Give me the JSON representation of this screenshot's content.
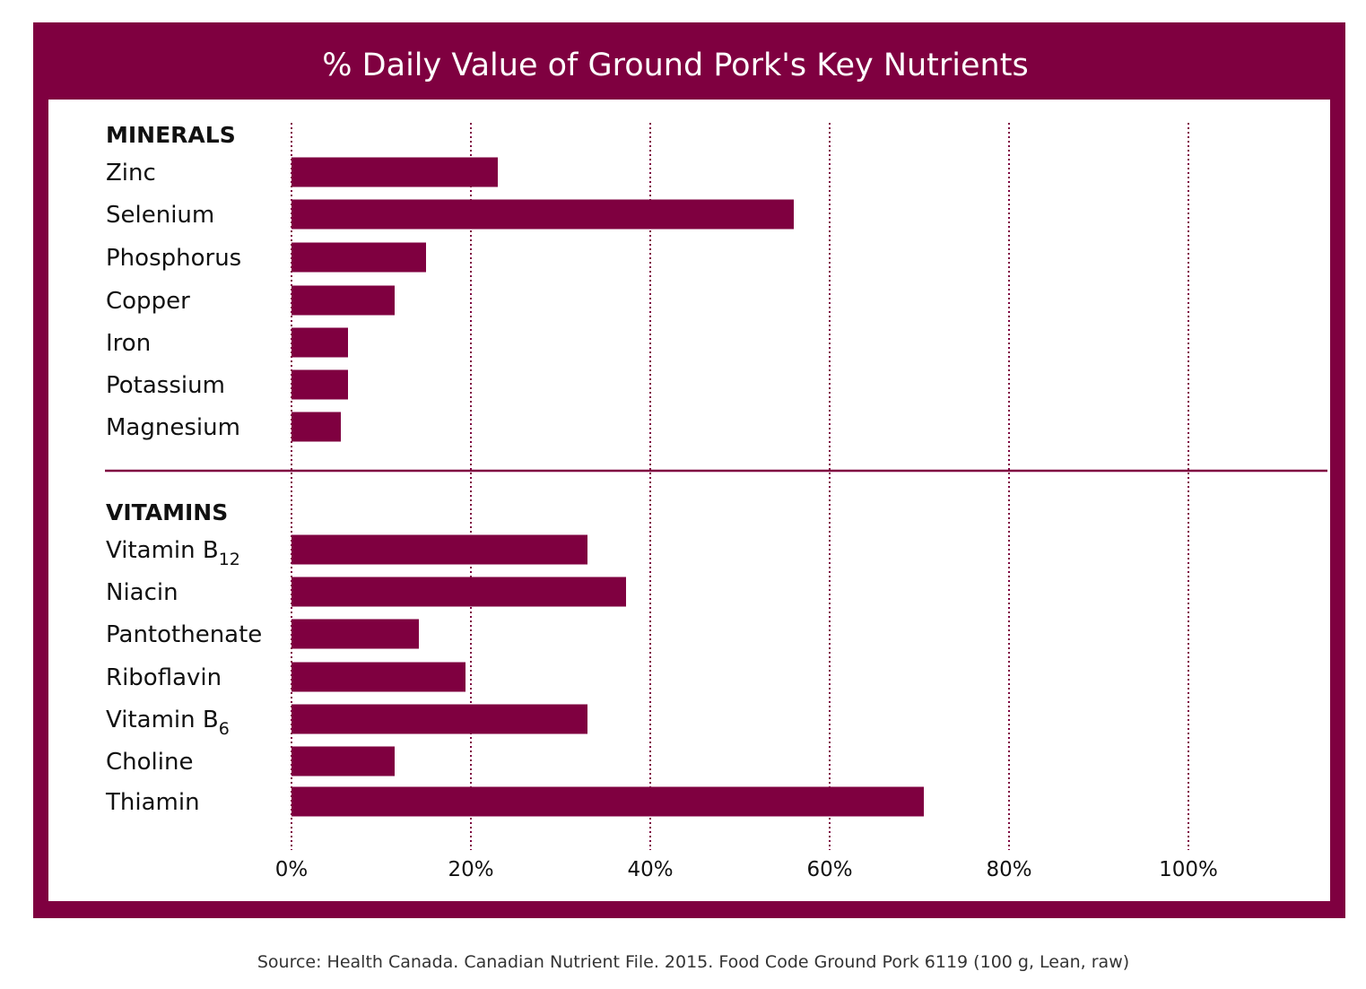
{
  "colors": {
    "accent": "#7f0040",
    "gridline": "#7f0040",
    "background": "#ffffff",
    "text": "#111111"
  },
  "chart_data": {
    "type": "bar",
    "orientation": "horizontal",
    "title": "% Daily Value of Ground Pork's Key Nutrients",
    "xlim": [
      0,
      100
    ],
    "xticks": [
      "0%",
      "20%",
      "40%",
      "60%",
      "80%",
      "100%"
    ],
    "xtick_values": [
      0,
      20,
      40,
      60,
      80,
      100
    ],
    "grid": "vertical dotted",
    "source": "Source: Health Canada. Canadian Nutrient File. 2015. Food Code Ground Pork 6119 (100 g, Lean, raw)",
    "groups": [
      {
        "name": "MINERALS",
        "items": [
          {
            "label": "Zinc",
            "value": 23
          },
          {
            "label": "Selenium",
            "value": 56
          },
          {
            "label": "Phosphorus",
            "value": 15
          },
          {
            "label": "Copper",
            "value": 11.5
          },
          {
            "label": "Iron",
            "value": 6.3
          },
          {
            "label": "Potassium",
            "value": 6.3
          },
          {
            "label": "Magnesium",
            "value": 5.5
          }
        ]
      },
      {
        "name": "VITAMINS",
        "items": [
          {
            "label": "Vitamin B",
            "sub": "12",
            "value": 33
          },
          {
            "label": "Niacin",
            "value": 37.3
          },
          {
            "label": "Pantothenate",
            "value": 14.2
          },
          {
            "label": "Riboflavin",
            "value": 19.4
          },
          {
            "label": "Vitamin B",
            "sub": "6",
            "value": 33
          },
          {
            "label": "Choline",
            "value": 11.5
          },
          {
            "label": "Thiamin",
            "value": 70.5
          }
        ]
      }
    ]
  }
}
